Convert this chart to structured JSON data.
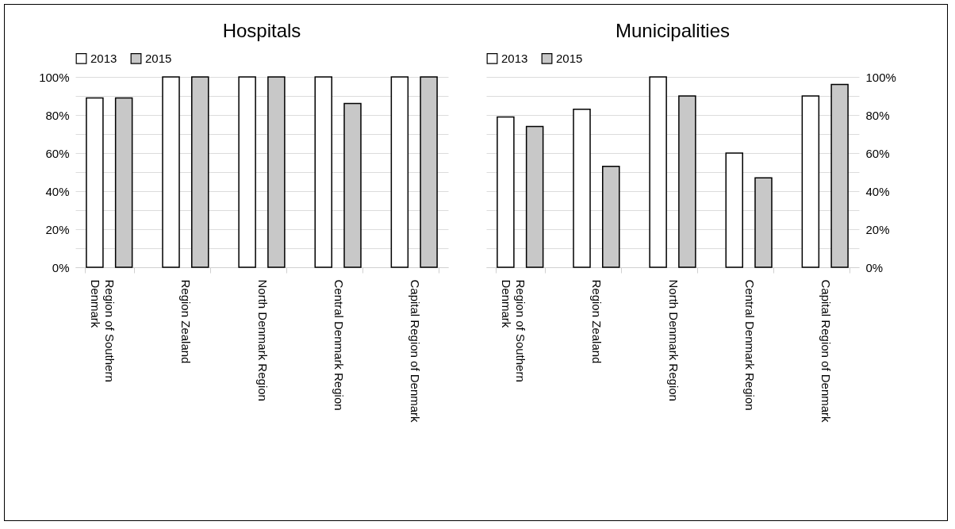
{
  "chart_data": [
    {
      "type": "bar",
      "title": "Hospitals",
      "categories": [
        "Region of Southern Denmark",
        "Region Zealand",
        "North Denmark Region",
        "Central Denmark Region",
        "Capital Region of Denmark"
      ],
      "series": [
        {
          "name": "2013",
          "color": "#ffffff",
          "values": [
            89,
            100,
            100,
            100,
            100
          ]
        },
        {
          "name": "2015",
          "color": "#c8c8c8",
          "values": [
            89,
            100,
            100,
            86,
            100
          ]
        }
      ],
      "ylim": [
        0,
        100
      ],
      "yticks": [
        {
          "value": 0,
          "label": "0%"
        },
        {
          "value": 10,
          "label": null
        },
        {
          "value": 20,
          "label": "20%"
        },
        {
          "value": 30,
          "label": null
        },
        {
          "value": 40,
          "label": "40%"
        },
        {
          "value": 50,
          "label": null
        },
        {
          "value": 60,
          "label": "60%"
        },
        {
          "value": 70,
          "label": null
        },
        {
          "value": 80,
          "label": "80%"
        },
        {
          "value": 90,
          "label": null
        },
        {
          "value": 100,
          "label": "100%"
        }
      ],
      "grid": "y",
      "legend": "top"
    },
    {
      "type": "bar",
      "title": "Municipalities",
      "categories": [
        "Region of Southern Denmark",
        "Region Zealand",
        "North Denmark Region",
        "Central Denmark Region",
        "Capital Region of Denmark"
      ],
      "series": [
        {
          "name": "2013",
          "color": "#ffffff",
          "axis": "y2",
          "values": [
            79,
            83,
            100,
            60,
            90
          ]
        },
        {
          "name": "2015",
          "color": "#c8c8c8",
          "axis": "y2",
          "values": [
            74,
            53,
            90,
            47,
            96
          ]
        }
      ],
      "y2lim": [
        0,
        100
      ],
      "y2ticks": [
        {
          "value": 0,
          "label": "0%"
        },
        {
          "value": 10,
          "label": null
        },
        {
          "value": 20,
          "label": "20%"
        },
        {
          "value": 30,
          "label": null
        },
        {
          "value": 40,
          "label": "40%"
        },
        {
          "value": 50,
          "label": null
        },
        {
          "value": 60,
          "label": "60%"
        },
        {
          "value": 70,
          "label": null
        },
        {
          "value": 80,
          "label": "80%"
        },
        {
          "value": 90,
          "label": null
        },
        {
          "value": 100,
          "label": "100%"
        }
      ],
      "grid": "y",
      "legend": "top"
    }
  ]
}
